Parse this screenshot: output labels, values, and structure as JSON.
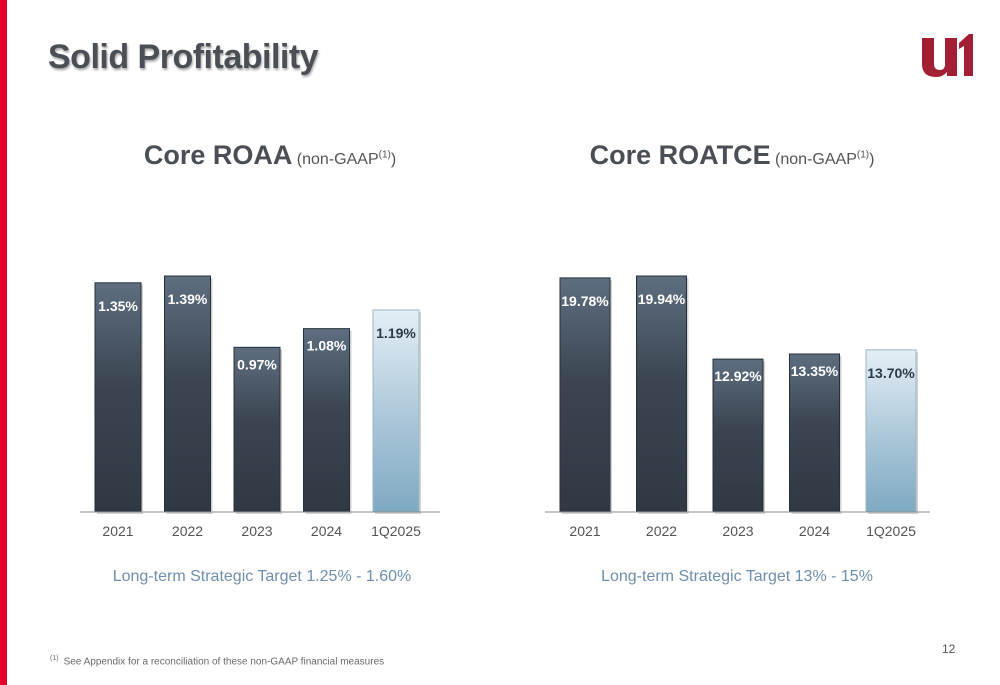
{
  "slide": {
    "title": "Solid Profitability",
    "footnote_marker": "(1)",
    "footnote_text": "See Appendix for a reconciliation of these non-GAAP financial measures",
    "page_number": "12",
    "accent_color": "#e4002b",
    "logo_color": "#a31f34"
  },
  "chart_data": [
    {
      "type": "bar",
      "title": "Core ROAA",
      "subtitle": "(non-GAAP",
      "subtitle_marker": "(1)",
      "subtitle_close": ")",
      "categories": [
        "2021",
        "2022",
        "2023",
        "2024",
        "1Q2025"
      ],
      "values": [
        1.35,
        1.39,
        0.97,
        1.08,
        1.19
      ],
      "labels": [
        "1.35%",
        "1.39%",
        "0.97%",
        "1.08%",
        "1.19%"
      ],
      "highlight_index": 4,
      "ylim": [
        0,
        1.39
      ],
      "target_text": "Long-term Strategic Target 1.25% - 1.60%"
    },
    {
      "type": "bar",
      "title": "Core ROATCE",
      "subtitle": "(non-GAAP",
      "subtitle_marker": "(1)",
      "subtitle_close": ")",
      "categories": [
        "2021",
        "2022",
        "2023",
        "2024",
        "1Q2025"
      ],
      "values": [
        19.78,
        19.94,
        12.92,
        13.35,
        13.7
      ],
      "labels": [
        "19.78%",
        "19.94%",
        "12.92%",
        "13.35%",
        "13.70%"
      ],
      "highlight_index": 4,
      "ylim": [
        0,
        19.94
      ],
      "target_text": "Long-term Strategic Target 13% - 15%"
    }
  ]
}
